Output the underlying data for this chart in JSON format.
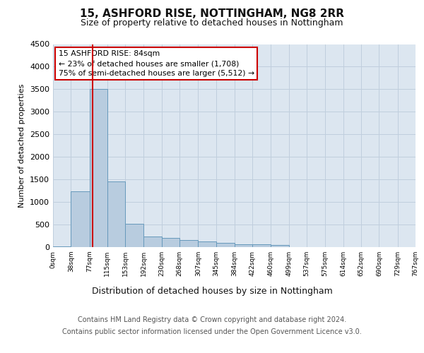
{
  "title": "15, ASHFORD RISE, NOTTINGHAM, NG8 2RR",
  "subtitle": "Size of property relative to detached houses in Nottingham",
  "dist_label": "Distribution of detached houses by size in Nottingham",
  "ylabel": "Number of detached properties",
  "footer_line1": "Contains HM Land Registry data © Crown copyright and database right 2024.",
  "footer_line2": "Contains public sector information licensed under the Open Government Licence v3.0.",
  "annotation_line1": "15 ASHFORD RISE: 84sqm",
  "annotation_line2": "← 23% of detached houses are smaller (1,708)",
  "annotation_line3": "75% of semi-detached houses are larger (5,512) →",
  "property_size": 84,
  "bar_color": "#b8ccdf",
  "bar_edge_color": "#6699bb",
  "vline_color": "#cc0000",
  "background_color": "#ffffff",
  "plot_bg_color": "#dce6f0",
  "grid_color": "#c0cedd",
  "bins": [
    0,
    38,
    77,
    115,
    153,
    192,
    230,
    268,
    307,
    345,
    384,
    422,
    460,
    499,
    537,
    575,
    614,
    652,
    690,
    729,
    767
  ],
  "counts": [
    8,
    1230,
    3500,
    1460,
    510,
    230,
    200,
    150,
    120,
    95,
    70,
    60,
    40,
    5,
    0,
    0,
    0,
    0,
    0,
    0
  ],
  "ylim": [
    0,
    4500
  ],
  "yticks": [
    0,
    500,
    1000,
    1500,
    2000,
    2500,
    3000,
    3500,
    4000,
    4500
  ]
}
